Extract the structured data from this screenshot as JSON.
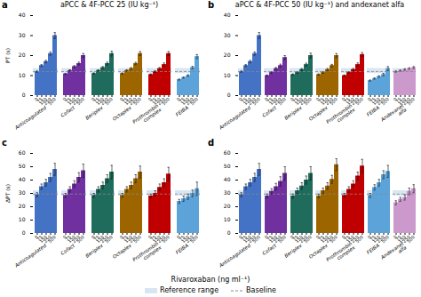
{
  "chart_data": [
    {
      "type": "bar",
      "panel_label": "a",
      "title": "aPCC & 4F-PCC 25 (IU kg⁻¹)",
      "ylabel": "PT (s)",
      "categories": [
        "0",
        "75",
        "150",
        "250",
        "500"
      ],
      "series": [
        {
          "name": "Anticoagulated",
          "color": "#4472c4",
          "values": [
            12.0,
            15.0,
            17.0,
            21.0,
            30.0
          ],
          "errors": [
            0.3,
            0.5,
            0.6,
            0.8,
            1.5
          ]
        },
        {
          "name": "Cofact",
          "color": "#7030a0",
          "values": [
            10.8,
            12.5,
            14.5,
            16.0,
            20.0
          ],
          "errors": [
            0.3,
            0.4,
            0.5,
            0.7,
            1.0
          ]
        },
        {
          "name": "Beriplex",
          "color": "#1f6b5c",
          "values": [
            11.0,
            12.5,
            14.0,
            16.0,
            21.0
          ],
          "errors": [
            0.3,
            0.4,
            0.5,
            0.7,
            1.2
          ]
        },
        {
          "name": "Octaplex",
          "color": "#9c6500",
          "values": [
            11.0,
            12.5,
            13.5,
            16.0,
            21.0
          ],
          "errors": [
            0.3,
            0.4,
            0.5,
            0.6,
            1.0
          ]
        },
        {
          "name": "Prothrombin\ncomplex",
          "color": "#c00000",
          "values": [
            10.5,
            12.0,
            13.5,
            15.5,
            21.0
          ],
          "errors": [
            0.3,
            0.4,
            0.5,
            0.8,
            1.0
          ]
        },
        {
          "name": "FEIBA",
          "color": "#5ba3d9",
          "values": [
            8.0,
            9.0,
            10.0,
            14.0,
            19.5
          ],
          "errors": [
            0.3,
            0.3,
            0.4,
            0.6,
            1.0
          ]
        }
      ],
      "reference_range": {
        "name": "Reference range",
        "color": "#b8cfe8",
        "low": 11.0,
        "high": 13.5
      },
      "baseline": {
        "name": "Baseline",
        "color": "#888888",
        "value": 12.0
      },
      "ylim": [
        0,
        40
      ],
      "yticks": [
        0,
        10,
        20,
        30,
        40
      ],
      "grid": false
    },
    {
      "type": "bar",
      "panel_label": "b",
      "title": "aPCC & 4F-PCC 50 (IU kg⁻¹) and andexanet alfa",
      "categories": [
        "0",
        "75",
        "150",
        "250",
        "500"
      ],
      "series": [
        {
          "name": "Anticoagulated",
          "color": "#4472c4",
          "values": [
            12.0,
            15.0,
            17.0,
            21.0,
            30.0
          ],
          "errors": [
            0.3,
            0.5,
            0.6,
            0.8,
            1.5
          ]
        },
        {
          "name": "Cofact",
          "color": "#7030a0",
          "values": [
            10.0,
            11.5,
            13.5,
            15.0,
            19.0
          ],
          "errors": [
            0.3,
            0.4,
            0.5,
            0.7,
            1.0
          ]
        },
        {
          "name": "Beriplex",
          "color": "#1f6b5c",
          "values": [
            10.5,
            11.5,
            13.0,
            15.5,
            20.0
          ],
          "errors": [
            0.3,
            0.4,
            0.5,
            0.7,
            1.2
          ]
        },
        {
          "name": "Octaplex",
          "color": "#9c6500",
          "values": [
            10.5,
            11.5,
            13.0,
            15.0,
            20.0
          ],
          "errors": [
            0.3,
            0.4,
            0.5,
            0.6,
            1.0
          ]
        },
        {
          "name": "Prothrombin\ncomplex",
          "color": "#c00000",
          "values": [
            10.0,
            11.5,
            13.0,
            15.5,
            20.5
          ],
          "errors": [
            0.3,
            0.4,
            0.5,
            0.8,
            1.0
          ]
        },
        {
          "name": "FEIBA",
          "color": "#5ba3d9",
          "values": [
            7.5,
            8.5,
            9.5,
            10.5,
            13.5
          ],
          "errors": [
            0.3,
            0.3,
            0.4,
            0.6,
            1.0
          ]
        },
        {
          "name": "Andexanet\nalfa",
          "color": "#cc99cc",
          "values": [
            12.0,
            12.5,
            13.0,
            13.5,
            14.0
          ],
          "errors": [
            0.3,
            0.3,
            0.4,
            0.4,
            0.5
          ]
        }
      ],
      "reference_range": {
        "name": "Reference range",
        "color": "#b8cfe8",
        "low": 11.0,
        "high": 13.5
      },
      "baseline": {
        "name": "Baseline",
        "color": "#888888",
        "value": 12.0
      },
      "ylim": [
        0,
        40
      ],
      "yticks": [
        0,
        10,
        20,
        30,
        40
      ],
      "grid": false
    },
    {
      "type": "bar",
      "panel_label": "c",
      "ylabel": "ΔPT (s)",
      "xlabel": "Rivaroxaban (ng ml⁻¹)",
      "categories": [
        "0",
        "75",
        "150",
        "250",
        "500"
      ],
      "series": [
        {
          "name": "Anticoagulated",
          "color": "#4472c4",
          "values": [
            29.0,
            35.0,
            38.0,
            42.0,
            48.0
          ],
          "errors": [
            1.5,
            2.0,
            2.5,
            3.0,
            4.5
          ]
        },
        {
          "name": "Cofact",
          "color": "#7030a0",
          "values": [
            28.5,
            33.0,
            37.0,
            42.0,
            47.0
          ],
          "errors": [
            1.5,
            2.0,
            2.5,
            3.5,
            5.0
          ]
        },
        {
          "name": "Beriplex",
          "color": "#1f6b5c",
          "values": [
            28.5,
            33.0,
            36.0,
            41.0,
            46.0
          ],
          "errors": [
            1.5,
            2.0,
            2.5,
            3.0,
            5.0
          ]
        },
        {
          "name": "Octaplex",
          "color": "#9c6500",
          "values": [
            28.5,
            33.0,
            36.0,
            41.0,
            46.0
          ],
          "errors": [
            1.5,
            2.0,
            2.5,
            3.0,
            4.5
          ]
        },
        {
          "name": "Prothrombin\ncomplex",
          "color": "#c00000",
          "values": [
            28.0,
            30.0,
            34.5,
            38.0,
            44.5
          ],
          "errors": [
            1.5,
            2.0,
            2.5,
            3.0,
            5.0
          ]
        },
        {
          "name": "FEIBA",
          "color": "#5ba3d9",
          "values": [
            24.0,
            26.0,
            27.5,
            30.0,
            33.5
          ],
          "errors": [
            1.5,
            2.0,
            2.0,
            2.5,
            5.0
          ]
        }
      ],
      "reference_range": {
        "name": "Reference range",
        "color": "#b8cfe8",
        "low": 28.0,
        "high": 32.0
      },
      "baseline": {
        "name": "Baseline",
        "color": "#888888",
        "value": 29.5
      },
      "ylim": [
        0,
        60
      ],
      "yticks": [
        0,
        10,
        20,
        30,
        40,
        50,
        60
      ],
      "grid": false
    },
    {
      "type": "bar",
      "panel_label": "d",
      "categories": [
        "0",
        "75",
        "150",
        "250",
        "500"
      ],
      "series": [
        {
          "name": "Anticoagulated",
          "color": "#4472c4",
          "values": [
            29.0,
            35.0,
            38.0,
            42.0,
            48.0
          ],
          "errors": [
            1.5,
            2.0,
            2.5,
            3.0,
            4.5
          ]
        },
        {
          "name": "Cofact",
          "color": "#7030a0",
          "values": [
            28.0,
            31.5,
            35.0,
            39.0,
            45.0
          ],
          "errors": [
            1.5,
            2.0,
            2.5,
            3.5,
            5.0
          ]
        },
        {
          "name": "Beriplex",
          "color": "#1f6b5c",
          "values": [
            28.0,
            32.0,
            35.5,
            40.0,
            45.0
          ],
          "errors": [
            1.5,
            2.0,
            2.5,
            3.0,
            5.0
          ]
        },
        {
          "name": "Octaplex",
          "color": "#9c6500",
          "values": [
            28.0,
            32.0,
            35.5,
            40.5,
            51.5
          ],
          "errors": [
            1.5,
            2.0,
            2.5,
            3.0,
            4.5
          ]
        },
        {
          "name": "Prothrombin\ncomplex",
          "color": "#c00000",
          "values": [
            28.5,
            33.0,
            37.0,
            43.0,
            50.5
          ],
          "errors": [
            1.5,
            2.0,
            2.5,
            3.0,
            5.0
          ]
        },
        {
          "name": "FEIBA",
          "color": "#5ba3d9",
          "values": [
            28.5,
            34.5,
            38.0,
            44.0,
            46.5
          ],
          "errors": [
            1.5,
            2.0,
            2.5,
            3.0,
            4.5
          ]
        },
        {
          "name": "Andexanet\nalfa",
          "color": "#cc99cc",
          "values": [
            23.0,
            25.5,
            27.0,
            31.5,
            33.5
          ],
          "errors": [
            1.5,
            1.5,
            2.0,
            2.5,
            3.0
          ]
        }
      ],
      "reference_range": {
        "name": "Reference range",
        "color": "#b8cfe8",
        "low": 28.0,
        "high": 32.0
      },
      "baseline": {
        "name": "Baseline",
        "color": "#888888",
        "value": 29.5
      },
      "ylim": [
        0,
        60
      ],
      "yticks": [
        0,
        10,
        20,
        30,
        40,
        50,
        60
      ],
      "grid": false
    }
  ]
}
